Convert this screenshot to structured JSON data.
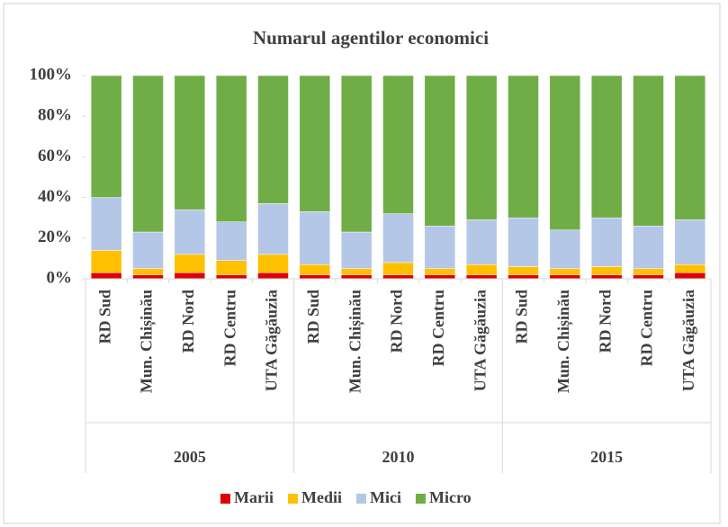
{
  "chart_data": {
    "type": "stacked_bar",
    "title": "Numarul agentilor economici",
    "categories": [
      "RD Sud",
      "Mun. Chișinău",
      "RD Nord",
      "RD Centru",
      "UTA Găgăuzia",
      "RD Sud",
      "Mun. Chișinău",
      "RD Nord",
      "RD Centru",
      "UTA Găgăuzia",
      "RD Sud",
      "Mun. Chișinău",
      "RD Nord",
      "RD Centru",
      "UTA Găgăuzia"
    ],
    "groups": [
      "2005",
      "2010",
      "2015"
    ],
    "series": [
      {
        "name": "Marii",
        "color": "#e00000",
        "values": [
          3,
          2,
          3,
          2,
          3,
          2,
          2,
          2,
          2,
          2,
          2,
          2,
          2,
          2,
          3
        ]
      },
      {
        "name": "Medii",
        "color": "#ffc000",
        "values": [
          11,
          3,
          9,
          7,
          9,
          5,
          3,
          6,
          3,
          5,
          4,
          3,
          4,
          3,
          4
        ]
      },
      {
        "name": "Mici",
        "color": "#b4c7e7",
        "values": [
          26,
          18,
          22,
          19,
          25,
          26,
          18,
          24,
          21,
          22,
          24,
          19,
          24,
          21,
          22
        ]
      },
      {
        "name": "Micro",
        "color": "#70ad47",
        "values": [
          60,
          77,
          66,
          72,
          63,
          67,
          77,
          68,
          74,
          71,
          70,
          76,
          70,
          74,
          71
        ]
      }
    ],
    "ylim": [
      0,
      100
    ],
    "yticks": [
      {
        "value": 0,
        "label": "0%"
      },
      {
        "value": 20,
        "label": "20%"
      },
      {
        "value": 40,
        "label": "40%"
      },
      {
        "value": 60,
        "label": "60%"
      },
      {
        "value": 80,
        "label": "80%"
      },
      {
        "value": 100,
        "label": "100%"
      }
    ],
    "legend": "bottom"
  }
}
